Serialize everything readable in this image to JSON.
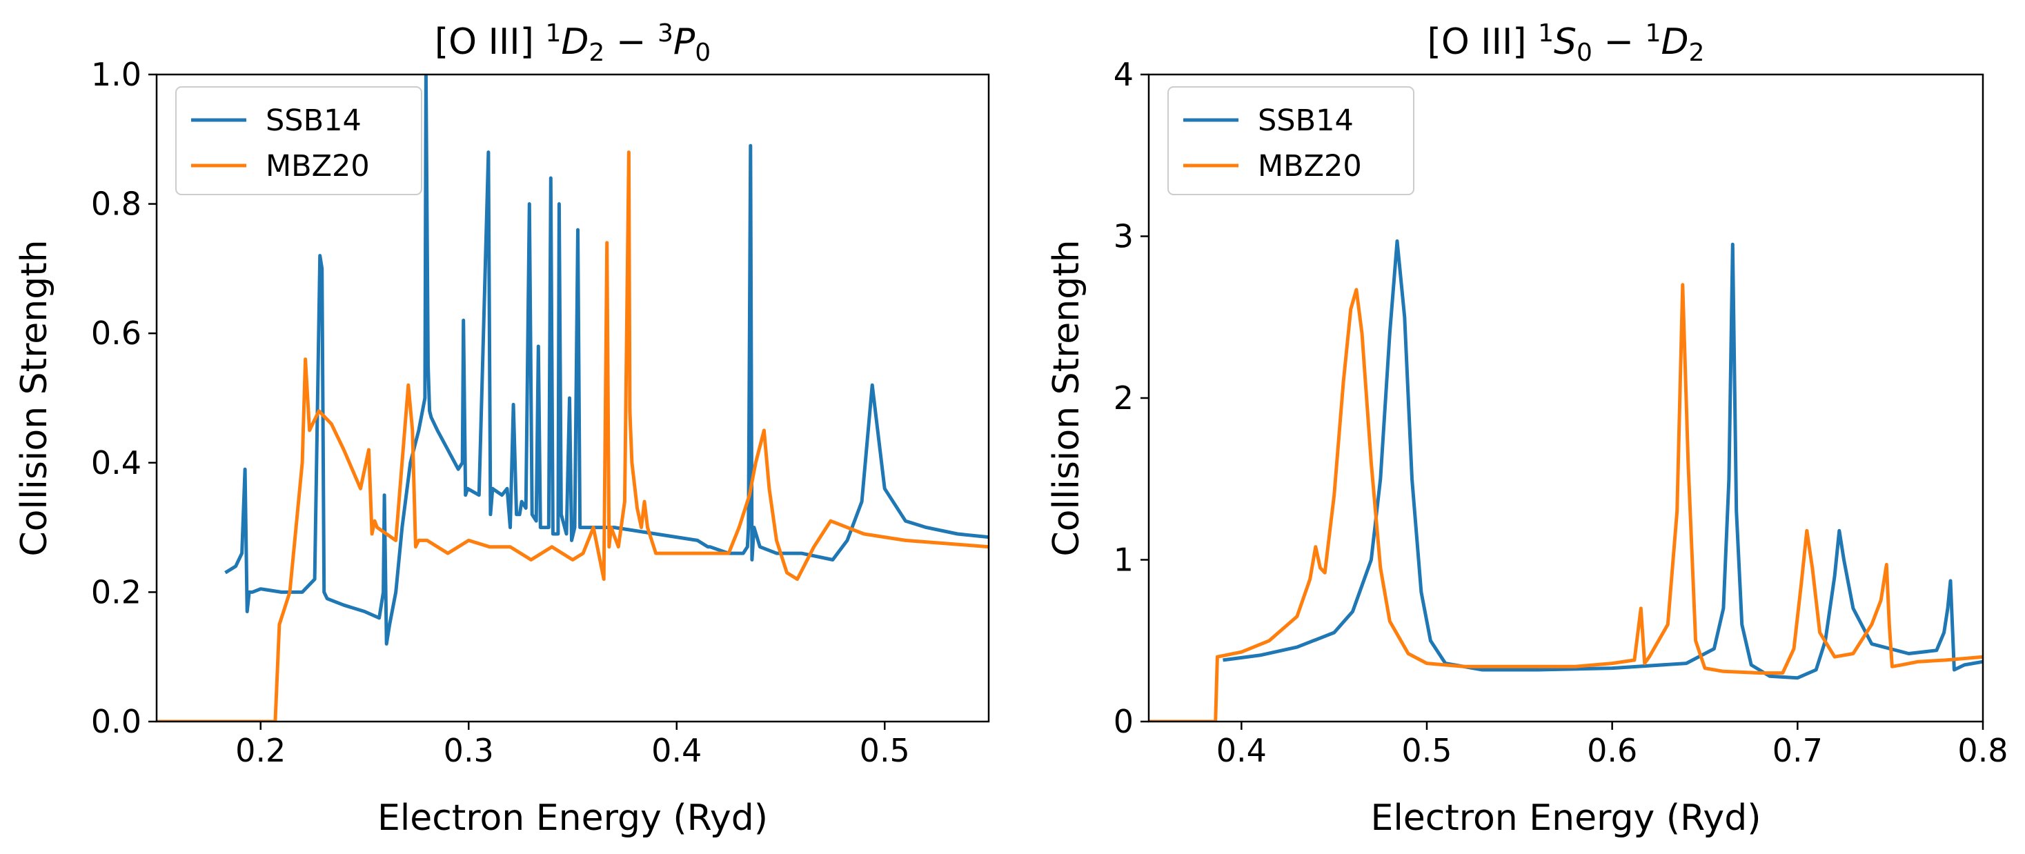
{
  "chart_data": [
    {
      "type": "line",
      "title": "[O III] {1}D{2} − {3}P{0}",
      "xlabel": "Electron Energy (Ryd)",
      "ylabel": "Collision Strength",
      "xlim": [
        0.15,
        0.55
      ],
      "ylim": [
        0,
        1.0
      ],
      "xticks": [
        0.2,
        0.3,
        0.4,
        0.5
      ],
      "yticks": [
        0.0,
        0.2,
        0.4,
        0.6,
        0.8,
        1.0
      ],
      "xtick_labels": [
        "0.2",
        "0.3",
        "0.4",
        "0.5"
      ],
      "ytick_labels": [
        "0.0",
        "0.2",
        "0.4",
        "0.6",
        "0.8",
        "1.0"
      ],
      "legend_position": "top-left",
      "series": [
        {
          "name": "SSB14",
          "color": "#1f77b4",
          "x": [
            0.183,
            0.188,
            0.191,
            0.1925,
            0.1935,
            0.1945,
            0.196,
            0.2,
            0.21,
            0.22,
            0.226,
            0.2285,
            0.2295,
            0.2305,
            0.232,
            0.24,
            0.25,
            0.257,
            0.259,
            0.2595,
            0.2605,
            0.262,
            0.265,
            0.268,
            0.272,
            0.276,
            0.279,
            0.2795,
            0.2805,
            0.2812,
            0.282,
            0.285,
            0.29,
            0.295,
            0.297,
            0.2975,
            0.2985,
            0.2995,
            0.305,
            0.3095,
            0.3105,
            0.3115,
            0.316,
            0.3185,
            0.32,
            0.3215,
            0.323,
            0.3245,
            0.3255,
            0.3275,
            0.3292,
            0.3305,
            0.3325,
            0.3335,
            0.3345,
            0.336,
            0.3385,
            0.3395,
            0.3405,
            0.343,
            0.3435,
            0.3445,
            0.347,
            0.3485,
            0.3495,
            0.351,
            0.3525,
            0.3535,
            0.356,
            0.37,
            0.39,
            0.41,
            0.415,
            0.416,
            0.425,
            0.432,
            0.434,
            0.4345,
            0.4355,
            0.4362,
            0.4372,
            0.44,
            0.448,
            0.46,
            0.475,
            0.482,
            0.489,
            0.494,
            0.4955,
            0.5,
            0.51,
            0.52,
            0.535,
            0.55
          ],
          "y": [
            0.23,
            0.24,
            0.26,
            0.39,
            0.17,
            0.2,
            0.2,
            0.205,
            0.2,
            0.2,
            0.22,
            0.72,
            0.7,
            0.2,
            0.19,
            0.18,
            0.17,
            0.16,
            0.2,
            0.35,
            0.12,
            0.15,
            0.2,
            0.3,
            0.4,
            0.45,
            0.5,
            1.0,
            0.55,
            0.48,
            0.47,
            0.45,
            0.42,
            0.39,
            0.4,
            0.62,
            0.35,
            0.36,
            0.35,
            0.88,
            0.32,
            0.36,
            0.35,
            0.36,
            0.3,
            0.49,
            0.32,
            0.32,
            0.34,
            0.33,
            0.8,
            0.32,
            0.31,
            0.58,
            0.3,
            0.3,
            0.3,
            0.84,
            0.29,
            0.29,
            0.8,
            0.32,
            0.29,
            0.5,
            0.28,
            0.3,
            0.76,
            0.3,
            0.3,
            0.3,
            0.29,
            0.28,
            0.27,
            0.27,
            0.26,
            0.26,
            0.27,
            0.3,
            0.89,
            0.25,
            0.3,
            0.27,
            0.26,
            0.26,
            0.25,
            0.28,
            0.34,
            0.52,
            0.48,
            0.36,
            0.31,
            0.3,
            0.29,
            0.285
          ]
        },
        {
          "name": "MBZ20",
          "color": "#ff7f0e",
          "x": [
            0.15,
            0.207,
            0.209,
            0.214,
            0.22,
            0.2215,
            0.2235,
            0.228,
            0.234,
            0.24,
            0.248,
            0.252,
            0.2535,
            0.2548,
            0.256,
            0.265,
            0.271,
            0.273,
            0.2745,
            0.276,
            0.28,
            0.29,
            0.3,
            0.31,
            0.32,
            0.33,
            0.34,
            0.35,
            0.355,
            0.36,
            0.365,
            0.3665,
            0.3675,
            0.3685,
            0.372,
            0.375,
            0.377,
            0.3775,
            0.3785,
            0.381,
            0.383,
            0.3845,
            0.386,
            0.39,
            0.4,
            0.41,
            0.425,
            0.43,
            0.435,
            0.438,
            0.442,
            0.4445,
            0.448,
            0.453,
            0.458,
            0.466,
            0.474,
            0.49,
            0.51,
            0.53,
            0.55
          ],
          "y": [
            0,
            0,
            0.15,
            0.2,
            0.4,
            0.56,
            0.45,
            0.48,
            0.46,
            0.42,
            0.36,
            0.42,
            0.29,
            0.31,
            0.3,
            0.28,
            0.52,
            0.45,
            0.27,
            0.28,
            0.28,
            0.26,
            0.28,
            0.27,
            0.27,
            0.25,
            0.27,
            0.25,
            0.26,
            0.3,
            0.22,
            0.74,
            0.27,
            0.3,
            0.27,
            0.34,
            0.88,
            0.48,
            0.4,
            0.33,
            0.3,
            0.34,
            0.3,
            0.26,
            0.26,
            0.26,
            0.26,
            0.3,
            0.35,
            0.4,
            0.45,
            0.36,
            0.28,
            0.23,
            0.22,
            0.27,
            0.31,
            0.29,
            0.28,
            0.275,
            0.27
          ]
        }
      ]
    },
    {
      "type": "line",
      "title": "[O III] {1}S{0} − {1}D{2}",
      "xlabel": "Electron Energy (Ryd)",
      "ylabel": "Collision Strength",
      "xlim": [
        0.35,
        0.8
      ],
      "ylim": [
        0,
        4
      ],
      "xticks": [
        0.4,
        0.5,
        0.6,
        0.7,
        0.8
      ],
      "yticks": [
        0,
        1,
        2,
        3,
        4
      ],
      "xtick_labels": [
        "0.4",
        "0.5",
        "0.6",
        "0.7",
        "0.8"
      ],
      "ytick_labels": [
        "0",
        "1",
        "2",
        "3",
        "4"
      ],
      "legend_position": "top-left",
      "series": [
        {
          "name": "SSB14",
          "color": "#1f77b4",
          "x": [
            0.39,
            0.41,
            0.43,
            0.45,
            0.46,
            0.47,
            0.475,
            0.48,
            0.484,
            0.488,
            0.492,
            0.497,
            0.502,
            0.51,
            0.53,
            0.56,
            0.6,
            0.64,
            0.655,
            0.66,
            0.663,
            0.665,
            0.667,
            0.67,
            0.675,
            0.685,
            0.7,
            0.71,
            0.715,
            0.72,
            0.7225,
            0.725,
            0.73,
            0.74,
            0.76,
            0.775,
            0.779,
            0.781,
            0.7825,
            0.7845,
            0.79,
            0.8
          ],
          "y": [
            0.38,
            0.41,
            0.46,
            0.55,
            0.68,
            1.0,
            1.5,
            2.4,
            2.97,
            2.5,
            1.5,
            0.8,
            0.5,
            0.36,
            0.32,
            0.32,
            0.33,
            0.36,
            0.45,
            0.7,
            1.5,
            2.95,
            1.3,
            0.6,
            0.35,
            0.28,
            0.27,
            0.32,
            0.5,
            0.9,
            1.18,
            1.0,
            0.7,
            0.48,
            0.42,
            0.44,
            0.55,
            0.7,
            0.87,
            0.32,
            0.35,
            0.37
          ]
        },
        {
          "name": "MBZ20",
          "color": "#ff7f0e",
          "x": [
            0.35,
            0.386,
            0.387,
            0.4,
            0.415,
            0.43,
            0.437,
            0.44,
            0.4425,
            0.445,
            0.45,
            0.455,
            0.459,
            0.462,
            0.465,
            0.47,
            0.475,
            0.48,
            0.49,
            0.5,
            0.52,
            0.55,
            0.58,
            0.6,
            0.612,
            0.6155,
            0.6175,
            0.62,
            0.63,
            0.635,
            0.638,
            0.641,
            0.645,
            0.65,
            0.66,
            0.68,
            0.692,
            0.698,
            0.702,
            0.705,
            0.708,
            0.712,
            0.72,
            0.73,
            0.74,
            0.745,
            0.748,
            0.7495,
            0.751,
            0.756,
            0.765,
            0.78,
            0.8
          ],
          "y": [
            0,
            0,
            0.4,
            0.43,
            0.5,
            0.65,
            0.88,
            1.08,
            0.95,
            0.92,
            1.4,
            2.1,
            2.55,
            2.67,
            2.4,
            1.6,
            0.95,
            0.62,
            0.42,
            0.36,
            0.34,
            0.34,
            0.34,
            0.36,
            0.38,
            0.7,
            0.36,
            0.4,
            0.6,
            1.3,
            2.7,
            1.6,
            0.5,
            0.33,
            0.31,
            0.3,
            0.3,
            0.45,
            0.85,
            1.18,
            0.95,
            0.55,
            0.4,
            0.42,
            0.6,
            0.75,
            0.97,
            0.6,
            0.34,
            0.35,
            0.37,
            0.38,
            0.4
          ]
        }
      ]
    }
  ]
}
